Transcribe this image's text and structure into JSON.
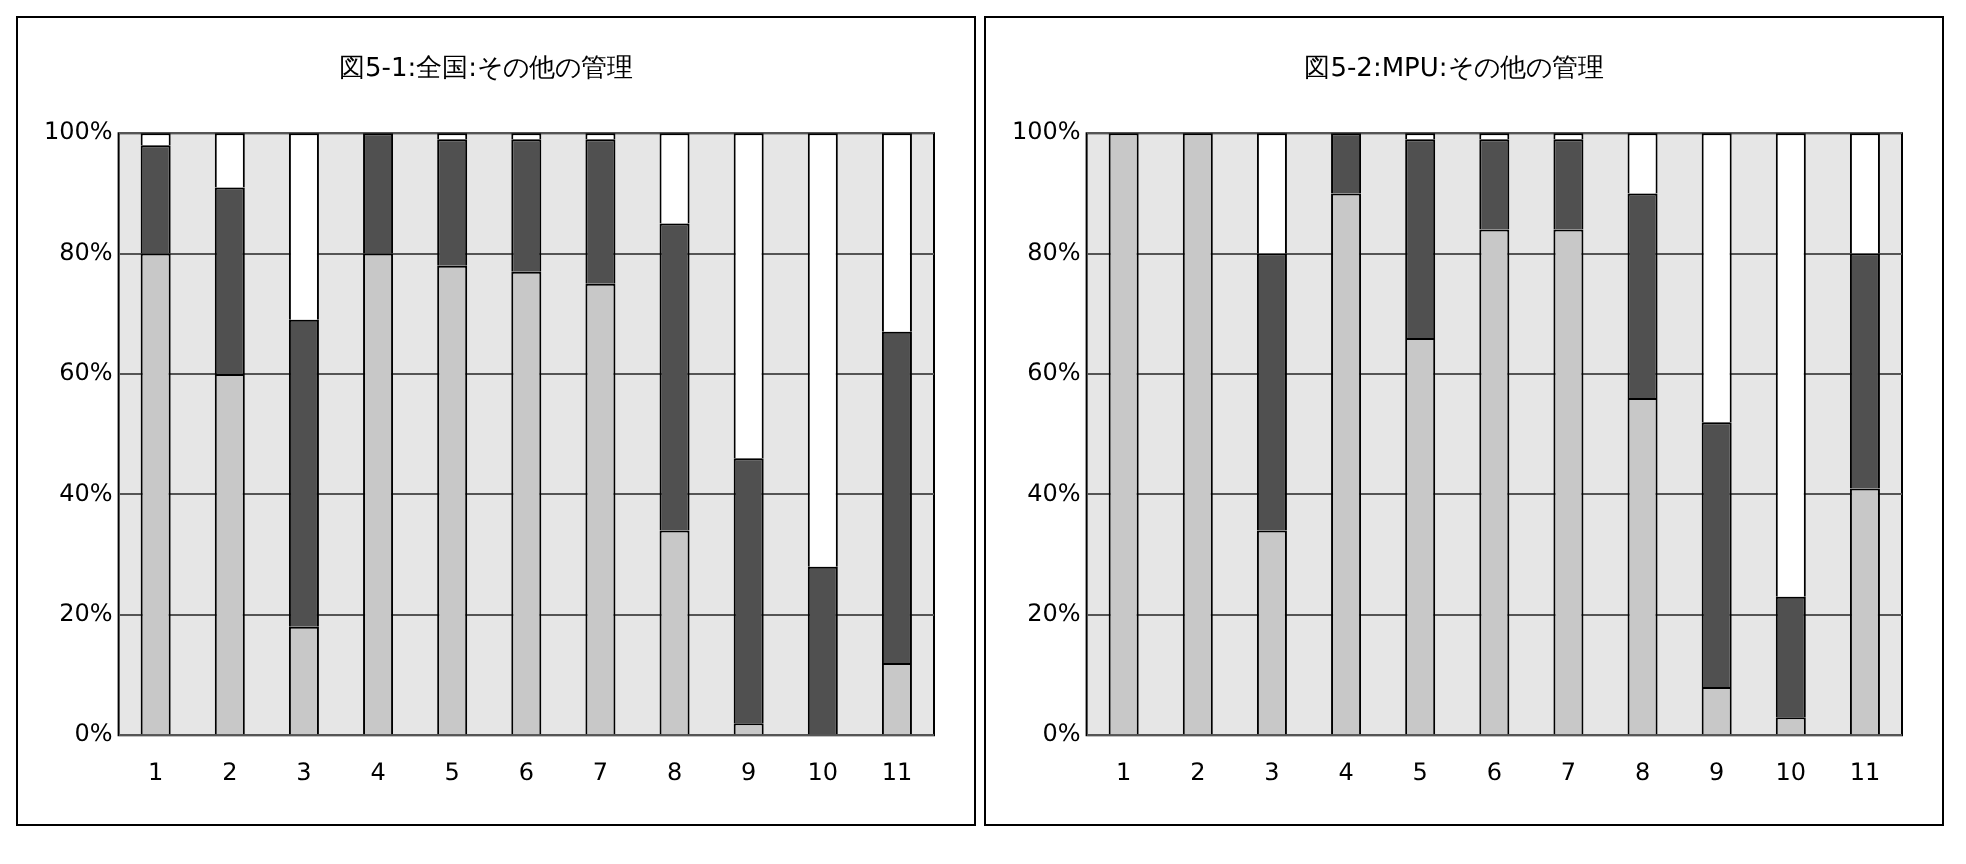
{
  "chart_data": [
    {
      "type": "bar",
      "title": "図5-1:全国:その他の管理",
      "stacked": true,
      "grid": "y",
      "categories": [
        "1",
        "2",
        "3",
        "4",
        "5",
        "6",
        "7",
        "8",
        "9",
        "10",
        "11"
      ],
      "ylim": [
        0,
        100
      ],
      "yticks": [
        {
          "value": 0,
          "label": "0%"
        },
        {
          "value": 20,
          "label": "20%"
        },
        {
          "value": 40,
          "label": "40%"
        },
        {
          "value": 60,
          "label": "60%"
        },
        {
          "value": 80,
          "label": "80%"
        },
        {
          "value": 100,
          "label": "100%"
        }
      ],
      "series": [
        {
          "color": "#c8c8c8",
          "values": [
            80,
            60,
            18,
            80,
            78,
            77,
            75,
            34,
            2,
            0,
            12
          ]
        },
        {
          "color": "#505050",
          "values": [
            18,
            31,
            51,
            20,
            21,
            22,
            24,
            51,
            44,
            28,
            55
          ]
        },
        {
          "color": "#ffffff",
          "values": [
            2,
            9,
            31,
            0,
            1,
            1,
            1,
            15,
            54,
            72,
            33
          ]
        }
      ]
    },
    {
      "type": "bar",
      "title": "図5-2:MPU:その他の管理",
      "stacked": true,
      "grid": "y",
      "categories": [
        "1",
        "2",
        "3",
        "4",
        "5",
        "6",
        "7",
        "8",
        "9",
        "10",
        "11"
      ],
      "ylim": [
        0,
        100
      ],
      "yticks": [
        {
          "value": 0,
          "label": "0%"
        },
        {
          "value": 20,
          "label": "20%"
        },
        {
          "value": 40,
          "label": "40%"
        },
        {
          "value": 60,
          "label": "60%"
        },
        {
          "value": 80,
          "label": "80%"
        },
        {
          "value": 100,
          "label": "100%"
        }
      ],
      "series": [
        {
          "color": "#c8c8c8",
          "values": [
            100,
            100,
            34,
            90,
            66,
            84,
            84,
            56,
            8,
            3,
            41
          ]
        },
        {
          "color": "#505050",
          "values": [
            0,
            0,
            46,
            10,
            33,
            15,
            15,
            34,
            44,
            20,
            39
          ]
        },
        {
          "color": "#ffffff",
          "values": [
            0,
            0,
            20,
            0,
            1,
            1,
            1,
            10,
            48,
            77,
            20
          ]
        }
      ]
    }
  ]
}
